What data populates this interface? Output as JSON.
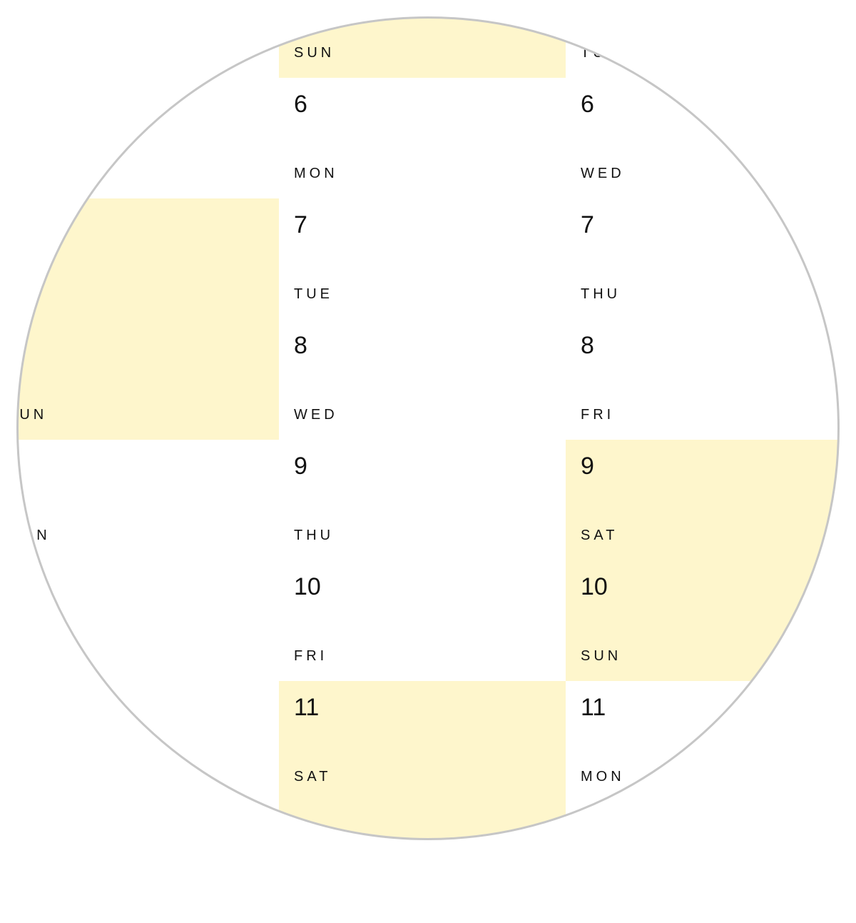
{
  "colors": {
    "weekend": "#fef6cc",
    "weekday": "#ffffff",
    "grid": "#222222",
    "lens_border": "#c6c6c6"
  },
  "columns": [
    {
      "name": "left",
      "cells": [
        {
          "day": "",
          "label": "",
          "weekend": false
        },
        {
          "day": "",
          "label": "",
          "weekend": false
        },
        {
          "day": "",
          "label": "",
          "weekend": true
        },
        {
          "day": "",
          "label": "SUN",
          "weekend": true
        },
        {
          "day": "",
          "label": "MON",
          "weekend": false
        },
        {
          "day": "",
          "label": "",
          "weekend": false
        },
        {
          "day": "",
          "label": "",
          "weekend": false
        },
        {
          "day": "",
          "label": "",
          "weekend": false
        }
      ]
    },
    {
      "name": "middle",
      "cells": [
        {
          "day": "",
          "label": "SUN",
          "weekend": true
        },
        {
          "day": "6",
          "label": "MON",
          "weekend": false
        },
        {
          "day": "7",
          "label": "TUE",
          "weekend": false
        },
        {
          "day": "8",
          "label": "WED",
          "weekend": false
        },
        {
          "day": "9",
          "label": "THU",
          "weekend": false
        },
        {
          "day": "10",
          "label": "FRI",
          "weekend": false
        },
        {
          "day": "11",
          "label": "SAT",
          "weekend": true
        },
        {
          "day": "",
          "label": "",
          "weekend": true
        }
      ]
    },
    {
      "name": "right",
      "cells": [
        {
          "day": "",
          "label": "TUE",
          "weekend": false
        },
        {
          "day": "6",
          "label": "WED",
          "weekend": false
        },
        {
          "day": "7",
          "label": "THU",
          "weekend": false
        },
        {
          "day": "8",
          "label": "FRI",
          "weekend": false
        },
        {
          "day": "9",
          "label": "SAT",
          "weekend": true
        },
        {
          "day": "10",
          "label": "SUN",
          "weekend": true
        },
        {
          "day": "11",
          "label": "MON",
          "weekend": false
        },
        {
          "day": "",
          "label": "",
          "weekend": false
        }
      ]
    }
  ]
}
